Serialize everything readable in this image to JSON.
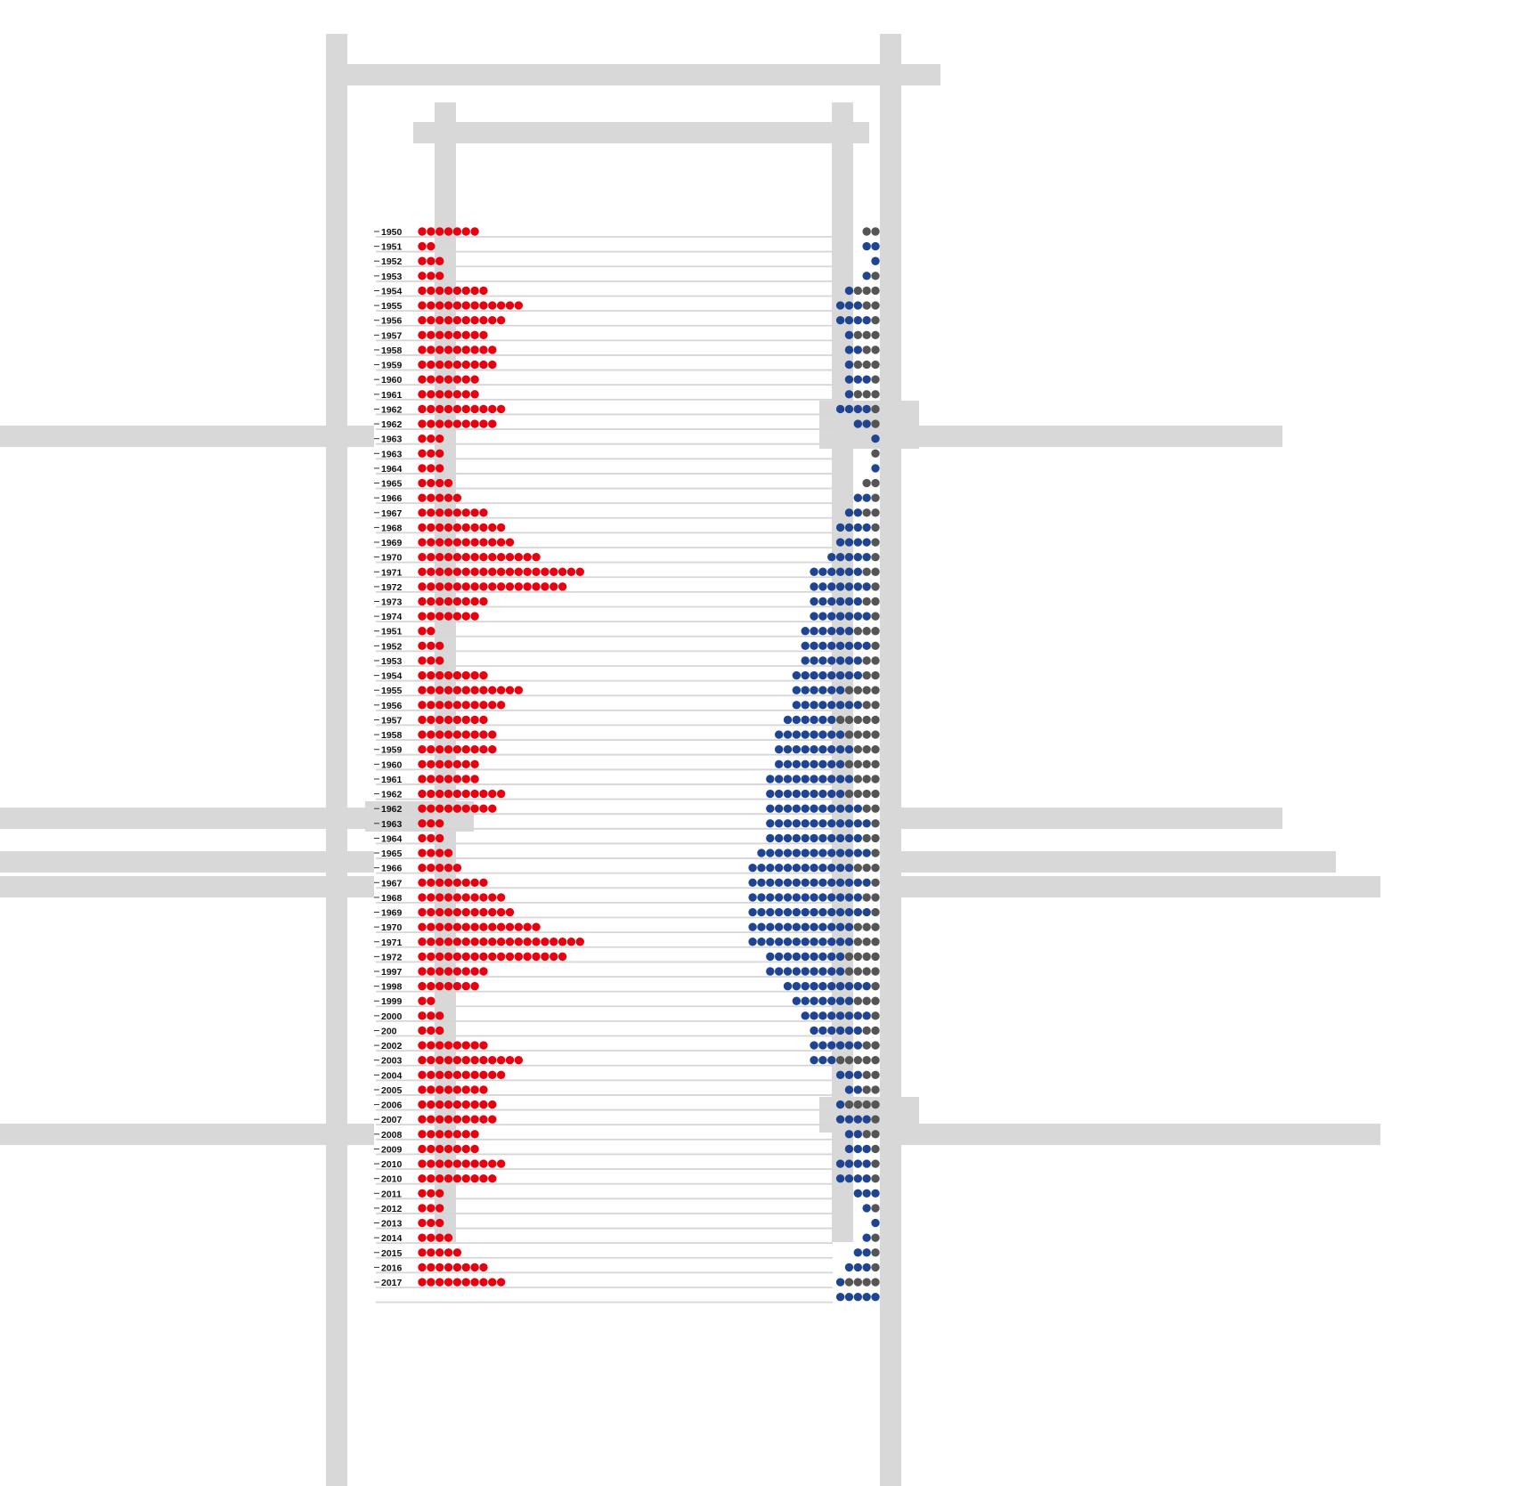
{
  "chart_data": {
    "type": "dot-matrix",
    "title": "",
    "colors": {
      "left_dots": "#e8000f",
      "right_primary": "#1f4592",
      "right_secondary": "#555555",
      "rows": "#d6d6d6",
      "background_bars": "#d8d8d8"
    },
    "rows": [
      {
        "label": "1950",
        "left": 7,
        "blue": 0,
        "gray": 2
      },
      {
        "label": "1951",
        "left": 2,
        "blue": 2,
        "gray": 0
      },
      {
        "label": "1952",
        "left": 3,
        "blue": 1,
        "gray": 0
      },
      {
        "label": "1953",
        "left": 3,
        "blue": 1,
        "gray": 1
      },
      {
        "label": "1954",
        "left": 8,
        "blue": 1,
        "gray": 3
      },
      {
        "label": "1955",
        "left": 12,
        "blue": 3,
        "gray": 2
      },
      {
        "label": "1956",
        "left": 10,
        "blue": 4,
        "gray": 1
      },
      {
        "label": "1957",
        "left": 8,
        "blue": 1,
        "gray": 3
      },
      {
        "label": "1958",
        "left": 9,
        "blue": 2,
        "gray": 2
      },
      {
        "label": "1959",
        "left": 9,
        "blue": 1,
        "gray": 3
      },
      {
        "label": "1960",
        "left": 7,
        "blue": 3,
        "gray": 1
      },
      {
        "label": "1961",
        "left": 7,
        "blue": 1,
        "gray": 3
      },
      {
        "label": "1962",
        "left": 10,
        "blue": 4,
        "gray": 1
      },
      {
        "label": "1962",
        "left": 9,
        "blue": 2,
        "gray": 1
      },
      {
        "label": "1963",
        "left": 3,
        "blue": 1,
        "gray": 0
      },
      {
        "label": "1963",
        "left": 3,
        "blue": 0,
        "gray": 1
      },
      {
        "label": "1964",
        "left": 3,
        "blue": 1,
        "gray": 0
      },
      {
        "label": "1965",
        "left": 4,
        "blue": 0,
        "gray": 2
      },
      {
        "label": "1966",
        "left": 5,
        "blue": 2,
        "gray": 1
      },
      {
        "label": "1967",
        "left": 8,
        "blue": 2,
        "gray": 2
      },
      {
        "label": "1968",
        "left": 10,
        "blue": 4,
        "gray": 1
      },
      {
        "label": "1969",
        "left": 11,
        "blue": 4,
        "gray": 1
      },
      {
        "label": "1970",
        "left": 14,
        "blue": 5,
        "gray": 1
      },
      {
        "label": "1971",
        "left": 19,
        "blue": 6,
        "gray": 2
      },
      {
        "label": "1972",
        "left": 17,
        "blue": 7,
        "gray": 1
      },
      {
        "label": "1973",
        "left": 8,
        "blue": 6,
        "gray": 2
      },
      {
        "label": "1974",
        "left": 7,
        "blue": 7,
        "gray": 1
      },
      {
        "label": "1951",
        "left": 2,
        "blue": 6,
        "gray": 3
      },
      {
        "label": "1952",
        "left": 3,
        "blue": 8,
        "gray": 1
      },
      {
        "label": "1953",
        "left": 3,
        "blue": 7,
        "gray": 2
      },
      {
        "label": "1954",
        "left": 8,
        "blue": 8,
        "gray": 2
      },
      {
        "label": "1955",
        "left": 12,
        "blue": 6,
        "gray": 4
      },
      {
        "label": "1956",
        "left": 10,
        "blue": 8,
        "gray": 2
      },
      {
        "label": "1957",
        "left": 8,
        "blue": 6,
        "gray": 5
      },
      {
        "label": "1958",
        "left": 9,
        "blue": 8,
        "gray": 4
      },
      {
        "label": "1959",
        "left": 9,
        "blue": 9,
        "gray": 3
      },
      {
        "label": "1960",
        "left": 7,
        "blue": 8,
        "gray": 4
      },
      {
        "label": "1961",
        "left": 7,
        "blue": 10,
        "gray": 3
      },
      {
        "label": "1962",
        "left": 10,
        "blue": 9,
        "gray": 4
      },
      {
        "label": "1962",
        "left": 9,
        "blue": 11,
        "gray": 2
      },
      {
        "label": "1963",
        "left": 3,
        "blue": 12,
        "gray": 1
      },
      {
        "label": "1964",
        "left": 3,
        "blue": 11,
        "gray": 2
      },
      {
        "label": "1965",
        "left": 4,
        "blue": 13,
        "gray": 1
      },
      {
        "label": "1966",
        "left": 5,
        "blue": 12,
        "gray": 3
      },
      {
        "label": "1967",
        "left": 8,
        "blue": 14,
        "gray": 1
      },
      {
        "label": "1968",
        "left": 10,
        "blue": 13,
        "gray": 2
      },
      {
        "label": "1969",
        "left": 11,
        "blue": 14,
        "gray": 1
      },
      {
        "label": "1970",
        "left": 14,
        "blue": 12,
        "gray": 3
      },
      {
        "label": "1971",
        "left": 19,
        "blue": 12,
        "gray": 3
      },
      {
        "label": "1972",
        "left": 17,
        "blue": 9,
        "gray": 4
      },
      {
        "label": "1997",
        "left": 8,
        "blue": 9,
        "gray": 4
      },
      {
        "label": "1998",
        "left": 7,
        "blue": 10,
        "gray": 1
      },
      {
        "label": "1999",
        "left": 2,
        "blue": 7,
        "gray": 3
      },
      {
        "label": "2000",
        "left": 3,
        "blue": 8,
        "gray": 1
      },
      {
        "label": "200",
        "left": 3,
        "blue": 6,
        "gray": 2
      },
      {
        "label": "2002",
        "left": 8,
        "blue": 6,
        "gray": 2
      },
      {
        "label": "2003",
        "left": 12,
        "blue": 3,
        "gray": 5
      },
      {
        "label": "2004",
        "left": 10,
        "blue": 3,
        "gray": 2
      },
      {
        "label": "2005",
        "left": 8,
        "blue": 2,
        "gray": 2
      },
      {
        "label": "2006",
        "left": 9,
        "blue": 1,
        "gray": 4
      },
      {
        "label": "2007",
        "left": 9,
        "blue": 4,
        "gray": 1
      },
      {
        "label": "2008",
        "left": 7,
        "blue": 2,
        "gray": 2
      },
      {
        "label": "2009",
        "left": 7,
        "blue": 3,
        "gray": 1
      },
      {
        "label": "2010",
        "left": 10,
        "blue": 4,
        "gray": 1
      },
      {
        "label": "2010",
        "left": 9,
        "blue": 4,
        "gray": 1
      },
      {
        "label": "2011",
        "left": 3,
        "blue": 3,
        "gray": 0
      },
      {
        "label": "2012",
        "left": 3,
        "blue": 1,
        "gray": 1
      },
      {
        "label": "2013",
        "left": 3,
        "blue": 1,
        "gray": 0
      },
      {
        "label": "2014",
        "left": 4,
        "blue": 1,
        "gray": 1
      },
      {
        "label": "2015",
        "left": 5,
        "blue": 2,
        "gray": 1
      },
      {
        "label": "2016",
        "left": 8,
        "blue": 3,
        "gray": 1
      },
      {
        "label": "2017",
        "left": 10,
        "blue": 1,
        "gray": 4
      },
      {
        "label": "",
        "left": 0,
        "blue": 5,
        "gray": 0
      }
    ]
  }
}
